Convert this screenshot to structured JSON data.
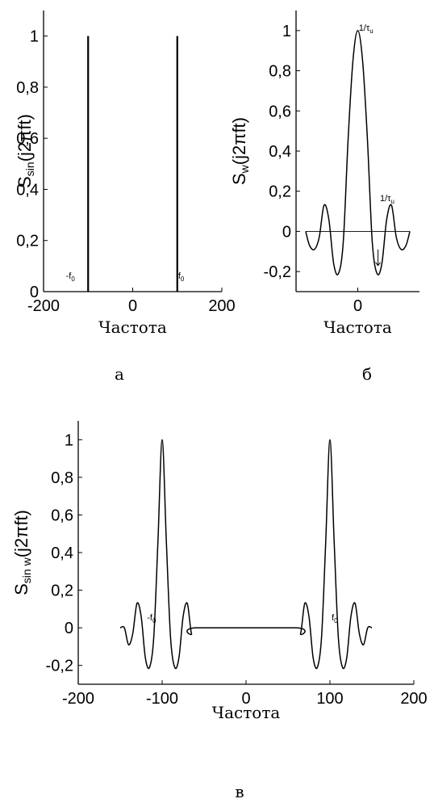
{
  "chart_data": [
    {
      "id": "a",
      "type": "line",
      "caption": "а",
      "xlabel": "Частота",
      "ylabel_main": "S",
      "ylabel_sub": "sin",
      "ylabel_rest": "(j2πft)",
      "xlim": [
        -200,
        200
      ],
      "ylim": [
        0,
        1.1
      ],
      "xticks": [
        -200,
        0,
        200
      ],
      "xtick_labels": [
        "-200",
        "0",
        "200"
      ],
      "yticks": [
        0,
        0.2,
        0.4,
        0.6,
        0.8,
        1
      ],
      "ytick_labels": [
        "0",
        "0,2",
        "0,4",
        "0,6",
        "0,8",
        "1"
      ],
      "series": [
        {
          "kind": "stem",
          "x": [
            -100,
            100
          ],
          "y": [
            1,
            1
          ]
        }
      ],
      "annotations": [
        {
          "id": "minus-f0",
          "main": "-f",
          "sub": "0",
          "x": -150,
          "y": 0.05
        },
        {
          "id": "f0",
          "main": "f",
          "sub": "0",
          "x": 102,
          "y": 0.05
        }
      ]
    },
    {
      "id": "b",
      "type": "line",
      "caption": "б",
      "xlabel": "Частота",
      "ylabel_main": "S",
      "ylabel_sub": "w",
      "ylabel_rest": "(j2πft)",
      "xlim": [
        -3.2,
        3.2
      ],
      "ylim": [
        -0.3,
        1.1
      ],
      "xticks": [
        0
      ],
      "xtick_labels": [
        "0"
      ],
      "yticks": [
        -0.2,
        0,
        0.2,
        0.4,
        0.6,
        0.8,
        1
      ],
      "ytick_labels": [
        "-0,2",
        "0",
        "0,2",
        "0,4",
        "0,6",
        "0,8",
        "1"
      ],
      "series": [
        {
          "kind": "line",
          "x": [
            -2.7,
            -2.5,
            -2.25,
            -2.0,
            -1.75,
            -1.5,
            -1.25,
            -1.0,
            -0.75,
            -0.5,
            -0.25,
            0,
            0.25,
            0.5,
            0.75,
            1.0,
            1.25,
            1.5,
            1.75,
            2.0,
            2.25,
            2.5,
            2.7
          ],
          "y": [
            0.0,
            -0.07,
            -0.09,
            -0.03,
            0.13,
            0.06,
            -0.16,
            -0.21,
            -0.05,
            0.46,
            0.85,
            1.0,
            0.85,
            0.46,
            -0.05,
            -0.21,
            -0.16,
            0.06,
            0.13,
            -0.03,
            -0.09,
            -0.07,
            0.0
          ]
        }
      ],
      "zero_line": {
        "x": [
          -2.7,
          2.7
        ]
      },
      "annotations": [
        {
          "id": "one-over-tau-top",
          "main": "1/τ",
          "sub": "u",
          "x": 0.05,
          "y": 1.0
        },
        {
          "id": "one-over-tau-mid",
          "main": "1/τ",
          "sub": "u",
          "x": 1.15,
          "y": 0.15
        }
      ],
      "arrow": {
        "x": 1.05,
        "y_from": -0.09,
        "y_to": -0.17
      }
    },
    {
      "id": "c",
      "type": "line",
      "caption": "в",
      "xlabel": "Частота",
      "ylabel_main": "S",
      "ylabel_sub": "sin w",
      "ylabel_rest": "(j2πft)",
      "xlim": [
        -200,
        200
      ],
      "ylim": [
        -0.3,
        1.1
      ],
      "xticks": [
        -200,
        -100,
        0,
        100,
        200
      ],
      "xtick_labels": [
        "-200",
        "-100",
        "0",
        "100",
        "200"
      ],
      "yticks": [
        -0.2,
        0,
        0.2,
        0.4,
        0.6,
        0.8,
        1
      ],
      "ytick_labels": [
        "-0,2",
        "0",
        "0,2",
        "0,4",
        "0,6",
        "0,8",
        "1"
      ],
      "series": [
        {
          "kind": "line",
          "x": [
            -150,
            -145,
            -140,
            -135,
            -130,
            -125,
            -120,
            -115,
            -110,
            -105,
            -100,
            -95,
            -90,
            -85,
            -80,
            -75,
            -70,
            -65,
            -60,
            60,
            65,
            70,
            75,
            80,
            85,
            90,
            95,
            100,
            105,
            110,
            115,
            120,
            125,
            130,
            135,
            140,
            145,
            150
          ],
          "y": [
            0.0,
            0.0,
            -0.09,
            -0.03,
            0.13,
            0.06,
            -0.16,
            -0.21,
            -0.05,
            0.46,
            1.0,
            0.46,
            -0.05,
            -0.21,
            -0.16,
            0.06,
            0.13,
            -0.03,
            0.0,
            0.0,
            -0.03,
            0.13,
            0.06,
            -0.16,
            -0.21,
            -0.05,
            0.46,
            1.0,
            0.46,
            -0.05,
            -0.21,
            -0.16,
            0.06,
            0.13,
            -0.03,
            -0.09,
            0.0,
            0.0
          ]
        }
      ],
      "annotations": [
        {
          "id": "minus-f0",
          "main": "-f",
          "sub": "0",
          "x": -118,
          "y": 0.04
        },
        {
          "id": "f0",
          "main": "f",
          "sub": "0",
          "x": 102,
          "y": 0.04
        }
      ]
    }
  ]
}
